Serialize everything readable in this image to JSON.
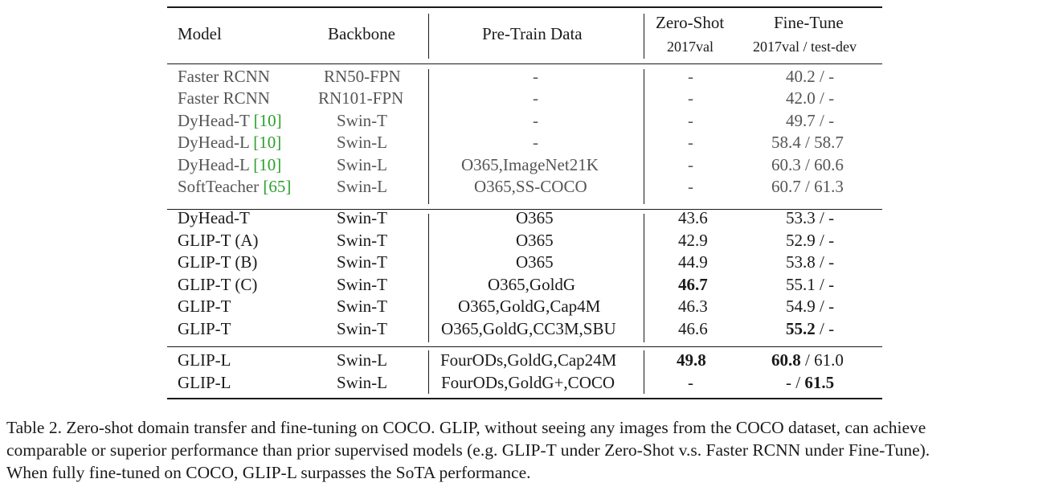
{
  "table": {
    "header": {
      "model": "Model",
      "backbone": "Backbone",
      "pretrain": "Pre-Train Data",
      "zeroshot": "Zero-Shot",
      "zeroshot_sub": "2017val",
      "finetune": "Fine-Tune",
      "finetune_sub": "2017val / test-dev"
    },
    "group1": [
      {
        "model": "Faster RCNN",
        "cite": "",
        "backbone": "RN50-FPN",
        "pretrain": "-",
        "zeroshot": "-",
        "finetune": "40.2 / -"
      },
      {
        "model": "Faster RCNN",
        "cite": "",
        "backbone": "RN101-FPN",
        "pretrain": "-",
        "zeroshot": "-",
        "finetune": "42.0 / -"
      },
      {
        "model": "DyHead-T ",
        "cite": "[10]",
        "backbone": "Swin-T",
        "pretrain": "-",
        "zeroshot": "-",
        "finetune": "49.7 / -"
      },
      {
        "model": "DyHead-L ",
        "cite": "[10]",
        "backbone": "Swin-L",
        "pretrain": "-",
        "zeroshot": "-",
        "finetune": "58.4 / 58.7"
      },
      {
        "model": "DyHead-L ",
        "cite": "[10]",
        "backbone": "Swin-L",
        "pretrain": "O365,ImageNet21K",
        "zeroshot": "-",
        "finetune": "60.3 / 60.6"
      },
      {
        "model": "SoftTeacher ",
        "cite": "[65]",
        "backbone": "Swin-L",
        "pretrain": "O365,SS-COCO",
        "zeroshot": "-",
        "finetune": "60.7 / 61.3"
      }
    ],
    "group2": [
      {
        "model": "DyHead-T",
        "backbone": "Swin-T",
        "pretrain": "O365",
        "zeroshot": "43.6",
        "finetune": "53.3 / -"
      },
      {
        "model": "GLIP-T (A)",
        "backbone": "Swin-T",
        "pretrain": "O365",
        "zeroshot": "42.9",
        "finetune": "52.9 / -"
      },
      {
        "model": "GLIP-T (B)",
        "backbone": "Swin-T",
        "pretrain": "O365",
        "zeroshot": "44.9",
        "finetune": "53.8 / -"
      },
      {
        "model": "GLIP-T (C)",
        "backbone": "Swin-T",
        "pretrain": "O365,GoldG",
        "zeroshot": "46.7",
        "finetune": "55.1 / -"
      },
      {
        "model": "GLIP-T",
        "backbone": "Swin-T",
        "pretrain": "O365,GoldG,Cap4M",
        "zeroshot": "46.3",
        "finetune": "54.9 / -"
      },
      {
        "model": "GLIP-T",
        "backbone": "Swin-T",
        "pretrain": "O365,GoldG,CC3M,SBU",
        "zeroshot": "46.6",
        "finetune_bold": "55.2",
        "finetune_rest": " / -"
      }
    ],
    "group3": [
      {
        "model": "GLIP-L",
        "backbone": "Swin-L",
        "pretrain": "FourODs,GoldG,Cap24M",
        "zeroshot": "49.8",
        "finetune_bold": "60.8",
        "finetune_rest": " / 61.0"
      },
      {
        "model": "GLIP-L",
        "backbone": "Swin-L",
        "pretrain": "FourODs,GoldG+,COCO",
        "zeroshot": "-",
        "finetune_pre": "- / ",
        "finetune_bold2": "61.5"
      }
    ]
  },
  "caption": {
    "line1": "Table 2.  Zero-shot domain transfer and fine-tuning on COCO. GLIP, without seeing any images from the COCO dataset, can achieve",
    "line2": "comparable or superior performance than prior supervised models (e.g.  GLIP-T under Zero-Shot v.s.  Faster RCNN under Fine-Tune).",
    "line3": "When fully fine-tuned on COCO, GLIP-L surpasses the SoTA performance."
  }
}
